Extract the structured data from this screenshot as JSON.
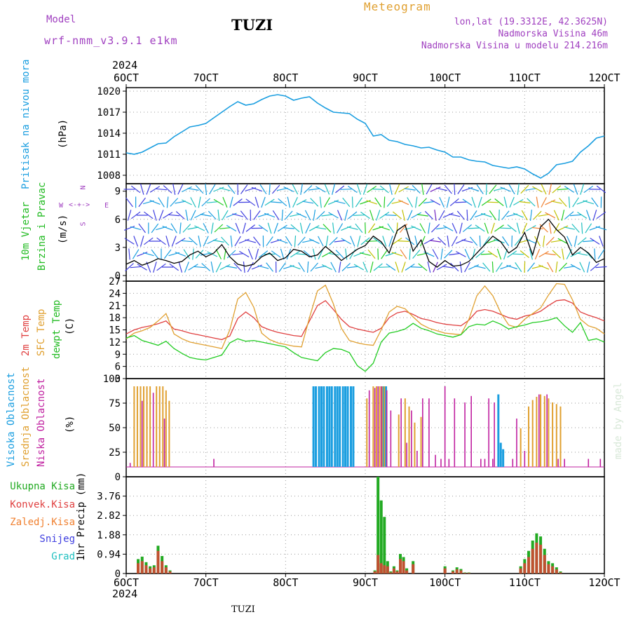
{
  "header": {
    "model_label": "Model",
    "model_name": "wrf-nmm_v3.9.1 e1km",
    "station": "TUZI",
    "meteogram_label": "Meteogram",
    "lonlat": "lon,lat (19.3312E, 42.3625N)",
    "elevation": "Nadmorska Visina 46m",
    "model_elevation": "Nadmorska Visina u modelu 214.216m",
    "year_top": "2024",
    "year_bottom": "2024",
    "footer_station": "TUZI",
    "credit": "made by Angel"
  },
  "colors": {
    "pressure": "#1a9ee0",
    "wind_title": "#22bb22",
    "temp2m": "#e04040",
    "sfc": "#e0a030",
    "dewpt": "#22cc22",
    "high_cloud": "#1a9ee0",
    "mid_cloud": "#e0a030",
    "low_cloud": "#c020a0",
    "total_precip": "#22aa22",
    "conv_precip": "#e04040",
    "frz_precip": "#f08030",
    "snow": "#4040e0",
    "hail": "#20c0c0",
    "purple_label": "#a040c0"
  },
  "x_ticks": [
    "6OCT",
    "7OCT",
    "8OCT",
    "9OCT",
    "10OCT",
    "11OCT",
    "12OCT"
  ],
  "compass": {
    "n": "N",
    "s": "S",
    "w": "W",
    "e": "E"
  },
  "chart_data": [
    {
      "type": "line",
      "panel": "pressure",
      "ylabel_name": "Pritisak na nivou mora",
      "ylabel_unit": "(hPa)",
      "yticks": [
        "1020",
        "1017",
        "1014",
        "1011",
        "1008"
      ],
      "ylim": [
        1006.8,
        1020.5
      ],
      "x": [
        6.0,
        6.1,
        6.2,
        6.3,
        6.4,
        6.5,
        6.6,
        6.7,
        6.8,
        6.9,
        7.0,
        7.1,
        7.2,
        7.3,
        7.4,
        7.5,
        7.6,
        7.7,
        7.8,
        7.9,
        8.0,
        8.1,
        8.2,
        8.3,
        8.4,
        8.5,
        8.6,
        8.7,
        8.8,
        8.9,
        9.0,
        9.1,
        9.2,
        9.3,
        9.4,
        9.5,
        9.6,
        9.7,
        9.8,
        9.9,
        10.0,
        10.1,
        10.2,
        10.3,
        10.4,
        10.5,
        10.6,
        10.7,
        10.8,
        10.9,
        11.0,
        11.1,
        11.2,
        11.3,
        11.4,
        11.5,
        11.6,
        11.7,
        11.8,
        11.9,
        12.0
      ],
      "series": [
        {
          "values": [
            1011.2,
            1011.0,
            1011.3,
            1011.9,
            1012.5,
            1012.6,
            1013.5,
            1014.2,
            1014.9,
            1015.1,
            1015.4,
            1016.2,
            1017.0,
            1017.8,
            1018.5,
            1018.0,
            1018.2,
            1018.8,
            1019.3,
            1019.5,
            1019.3,
            1018.7,
            1019.0,
            1019.2,
            1018.3,
            1017.6,
            1017.0,
            1016.9,
            1016.8,
            1016.0,
            1015.4,
            1013.6,
            1013.8,
            1013.0,
            1012.8,
            1012.4,
            1012.2,
            1011.9,
            1012.0,
            1011.6,
            1011.3,
            1010.6,
            1010.6,
            1010.2,
            1010.0,
            1009.9,
            1009.4,
            1009.2,
            1009.0,
            1009.2,
            1008.9,
            1008.2,
            1007.6,
            1008.3,
            1009.5,
            1009.7,
            1010.0,
            1011.3,
            1012.2,
            1013.3,
            1013.6
          ]
        }
      ]
    },
    {
      "type": "line",
      "panel": "wind",
      "ylabel_name": "10m Vjetar",
      "ylabel_name2": "Brzina i Pravac",
      "ylabel_unit": "(m/s)",
      "yticks": [
        "9",
        "6",
        "3",
        "0"
      ],
      "ylim": [
        -0.6,
        9.8
      ],
      "x": [
        6.0,
        6.1,
        6.2,
        6.3,
        6.4,
        6.5,
        6.6,
        6.7,
        6.8,
        6.9,
        7.0,
        7.1,
        7.2,
        7.3,
        7.4,
        7.5,
        7.6,
        7.7,
        7.8,
        7.9,
        8.0,
        8.1,
        8.2,
        8.3,
        8.4,
        8.5,
        8.6,
        8.7,
        8.8,
        8.9,
        9.0,
        9.1,
        9.2,
        9.3,
        9.4,
        9.5,
        9.6,
        9.7,
        9.8,
        9.9,
        10.0,
        10.1,
        10.2,
        10.3,
        10.4,
        10.5,
        10.6,
        10.7,
        10.8,
        10.9,
        11.0,
        11.1,
        11.2,
        11.3,
        11.4,
        11.5,
        11.6,
        11.7,
        11.8,
        11.9,
        12.0
      ],
      "series": [
        {
          "values": [
            1.2,
            1.6,
            1.1,
            1.4,
            1.8,
            1.6,
            1.3,
            1.5,
            2.2,
            2.6,
            2.0,
            2.4,
            3.3,
            2.0,
            1.2,
            1.0,
            1.2,
            2.0,
            2.4,
            1.6,
            1.9,
            2.8,
            2.6,
            2.0,
            2.2,
            3.1,
            2.4,
            1.6,
            2.2,
            2.8,
            3.2,
            4.2,
            3.6,
            2.4,
            4.8,
            5.4,
            2.6,
            3.8,
            1.5,
            0.9,
            1.6,
            1.0,
            1.1,
            1.5,
            2.4,
            3.3,
            4.2,
            3.6,
            2.4,
            3.0,
            4.6,
            2.2,
            5.2,
            6.0,
            4.9,
            4.1,
            2.2,
            3.0,
            2.4,
            1.4,
            1.8
          ]
        }
      ]
    },
    {
      "type": "line",
      "panel": "temperature",
      "ylabel_name": "2m Temp",
      "ylabel_name2": "SFC Temp",
      "ylabel_name3": "dewpt Temp",
      "ylabel_unit": "(C)",
      "yticks": [
        "27",
        "24",
        "21",
        "18",
        "15",
        "12",
        "9",
        "6",
        "3"
      ],
      "ylim": [
        3,
        27
      ],
      "x": [
        6.0,
        6.1,
        6.2,
        6.3,
        6.4,
        6.5,
        6.6,
        6.7,
        6.8,
        6.9,
        7.0,
        7.1,
        7.2,
        7.3,
        7.4,
        7.5,
        7.6,
        7.7,
        7.8,
        7.9,
        8.0,
        8.1,
        8.2,
        8.3,
        8.4,
        8.5,
        8.6,
        8.7,
        8.8,
        8.9,
        9.0,
        9.1,
        9.2,
        9.3,
        9.4,
        9.5,
        9.6,
        9.7,
        9.8,
        9.9,
        10.0,
        10.1,
        10.2,
        10.3,
        10.4,
        10.5,
        10.6,
        10.7,
        10.8,
        10.9,
        11.0,
        11.1,
        11.2,
        11.3,
        11.4,
        11.5,
        11.6,
        11.7,
        11.8,
        11.9,
        12.0
      ],
      "series": [
        {
          "name": "2m Temp",
          "values": [
            14.0,
            15.0,
            15.6,
            16.0,
            16.5,
            17.2,
            15.2,
            14.8,
            14.2,
            13.8,
            13.4,
            13.0,
            12.6,
            13.5,
            17.8,
            19.4,
            18.0,
            15.8,
            15.0,
            14.4,
            14.0,
            13.6,
            13.4,
            17.2,
            21.0,
            22.2,
            20.0,
            17.6,
            15.8,
            15.2,
            14.8,
            14.4,
            15.4,
            18.0,
            19.2,
            19.6,
            18.8,
            17.8,
            17.4,
            16.8,
            16.4,
            16.2,
            16.0,
            17.4,
            19.6,
            20.0,
            19.6,
            18.8,
            18.0,
            17.6,
            18.4,
            18.8,
            19.6,
            21.0,
            22.2,
            22.4,
            21.6,
            19.4,
            18.6,
            18.0,
            17.2
          ]
        },
        {
          "name": "SFC Temp",
          "values": [
            12.8,
            14.2,
            14.8,
            15.6,
            17.2,
            19.0,
            14.0,
            12.8,
            12.0,
            11.6,
            11.2,
            10.8,
            10.4,
            15.0,
            22.6,
            24.2,
            20.6,
            14.2,
            12.6,
            11.8,
            11.4,
            11.0,
            10.8,
            18.0,
            24.6,
            26.0,
            21.4,
            15.4,
            12.4,
            11.8,
            11.4,
            11.2,
            15.0,
            19.4,
            20.8,
            20.2,
            18.2,
            16.4,
            15.4,
            14.8,
            14.2,
            14.0,
            13.8,
            17.6,
            23.4,
            25.8,
            23.4,
            19.2,
            16.2,
            15.6,
            17.6,
            19.0,
            20.4,
            23.6,
            26.4,
            26.2,
            22.4,
            17.6,
            16.0,
            15.4,
            14.0
          ]
        },
        {
          "name": "dewpt Temp",
          "values": [
            13.0,
            13.6,
            12.4,
            11.8,
            11.2,
            12.2,
            10.4,
            9.2,
            8.2,
            7.8,
            7.6,
            8.2,
            8.8,
            11.8,
            12.8,
            12.2,
            12.4,
            12.0,
            11.6,
            11.2,
            10.8,
            9.4,
            8.2,
            7.8,
            7.4,
            9.4,
            10.4,
            10.2,
            9.4,
            6.2,
            4.8,
            6.8,
            12.0,
            14.2,
            14.6,
            15.2,
            16.6,
            15.4,
            14.8,
            14.0,
            13.6,
            13.2,
            13.8,
            15.8,
            16.4,
            16.2,
            17.2,
            16.4,
            15.2,
            15.8,
            16.2,
            16.8,
            17.0,
            17.4,
            18.0,
            16.0,
            14.4,
            16.8,
            12.4,
            12.8,
            12.0
          ]
        }
      ]
    },
    {
      "type": "bar",
      "panel": "cloud",
      "ylabel_name": "Visoka Oblacnost",
      "ylabel_name2": "Srednja Oblacnost",
      "ylabel_name3": "Niska Oblacnost",
      "ylabel_unit": "(%)",
      "yticks": [
        "100",
        "75",
        "50",
        "25",
        "0"
      ],
      "ylim": [
        0,
        100
      ],
      "series": [
        {
          "name": "Visoka Oblacnost",
          "x": [
            8.35,
            8.38,
            8.42,
            8.45,
            8.48,
            8.52,
            8.55,
            8.58,
            8.62,
            8.65,
            8.68,
            8.72,
            8.75,
            8.78,
            8.82,
            8.85,
            9.22,
            9.26,
            10.67,
            10.7,
            10.73
          ],
          "values": [
            100,
            100,
            100,
            100,
            100,
            100,
            100,
            100,
            100,
            100,
            100,
            100,
            100,
            100,
            100,
            100,
            100,
            100,
            90,
            30,
            22
          ]
        },
        {
          "name": "Srednja Oblacnost",
          "x": [
            6.1,
            6.14,
            6.18,
            6.22,
            6.26,
            6.3,
            6.38,
            6.42,
            6.46,
            6.5,
            6.54,
            9.02,
            9.1,
            9.14,
            9.18,
            9.21,
            9.24,
            9.42,
            9.5,
            9.55,
            9.62,
            9.7,
            10.95,
            11.05,
            11.1,
            11.15,
            11.2,
            11.25,
            11.3,
            11.35,
            11.4,
            11.45
          ],
          "values": [
            100,
            100,
            100,
            100,
            100,
            100,
            100,
            100,
            100,
            95,
            82,
            85,
            100,
            100,
            100,
            100,
            100,
            65,
            85,
            75,
            55,
            62,
            48,
            75,
            83,
            87,
            90,
            88,
            85,
            80,
            78,
            75
          ]
        },
        {
          "name": "Niska Oblacnost",
          "x": [
            6.05,
            6.2,
            6.34,
            6.48,
            7.1,
            9.05,
            9.12,
            9.16,
            9.2,
            9.27,
            9.32,
            9.45,
            9.52,
            9.58,
            9.65,
            9.72,
            9.8,
            9.88,
            9.95,
            10.0,
            10.05,
            10.12,
            10.25,
            10.33,
            10.45,
            10.5,
            10.55,
            10.6,
            10.62,
            10.85,
            10.9,
            11.0,
            11.18,
            11.28,
            11.42,
            11.5,
            11.8,
            11.95
          ],
          "values": [
            5,
            82,
            92,
            60,
            10,
            95,
            98,
            100,
            100,
            95,
            70,
            85,
            30,
            70,
            20,
            85,
            85,
            15,
            10,
            100,
            10,
            85,
            80,
            88,
            10,
            10,
            85,
            10,
            80,
            10,
            60,
            20,
            90,
            90,
            10,
            10,
            10,
            10
          ]
        }
      ]
    },
    {
      "type": "bar",
      "panel": "precip",
      "ylabel_name": "1hr Precip (mm)",
      "yticks": [
        "3.76",
        "2.82",
        "1.88",
        "0.94",
        "0"
      ],
      "ylim": [
        0,
        4.7
      ],
      "legend": [
        "Ukupna Kisa",
        "Konvek.Kisa",
        "Zaledj.Kisa",
        "Snijeg",
        "Grad"
      ],
      "series": [
        {
          "name": "Ukupna Kisa",
          "x": [
            6.15,
            6.2,
            6.25,
            6.3,
            6.35,
            6.4,
            6.45,
            6.5,
            6.55,
            9.12,
            9.16,
            9.2,
            9.24,
            9.28,
            9.32,
            9.36,
            9.4,
            9.44,
            9.48,
            9.52,
            9.6,
            10.0,
            10.1,
            10.15,
            10.2,
            10.25,
            10.3,
            10.95,
            11.0,
            11.05,
            11.1,
            11.15,
            11.2,
            11.25,
            11.3,
            11.35,
            11.4,
            11.45
          ],
          "values": [
            0.7,
            0.82,
            0.55,
            0.35,
            0.4,
            1.35,
            0.85,
            0.4,
            0.15,
            0.15,
            4.7,
            3.55,
            2.75,
            0.6,
            0.1,
            0.35,
            0.15,
            0.95,
            0.8,
            0.25,
            0.6,
            0.35,
            0.15,
            0.3,
            0.22,
            0.05,
            0.05,
            0.35,
            0.7,
            1.1,
            1.6,
            1.95,
            1.8,
            1.2,
            0.6,
            0.5,
            0.3,
            0.1
          ]
        },
        {
          "name": "Konvek.Kisa",
          "x": [
            6.15,
            6.2,
            6.25,
            6.3,
            6.35,
            6.4,
            6.45,
            6.5,
            6.55,
            9.12,
            9.16,
            9.2,
            9.24,
            9.28,
            9.32,
            9.36,
            9.4,
            9.44,
            9.48,
            9.52,
            9.6,
            10.0,
            10.1,
            10.15,
            10.2,
            10.25,
            10.3,
            10.95,
            11.0,
            11.05,
            11.1,
            11.15,
            11.2,
            11.25,
            11.3,
            11.35,
            11.4,
            11.45
          ],
          "values": [
            0.5,
            0.6,
            0.4,
            0.25,
            0.3,
            1.1,
            0.6,
            0.3,
            0.1,
            0.1,
            0.9,
            0.5,
            0.4,
            0.35,
            0.05,
            0.25,
            0.1,
            0.7,
            0.6,
            0.15,
            0.45,
            0.25,
            0.1,
            0.2,
            0.15,
            0.03,
            0.03,
            0.25,
            0.5,
            0.8,
            1.2,
            1.5,
            1.4,
            0.9,
            0.45,
            0.35,
            0.2,
            0.05
          ]
        }
      ]
    }
  ]
}
